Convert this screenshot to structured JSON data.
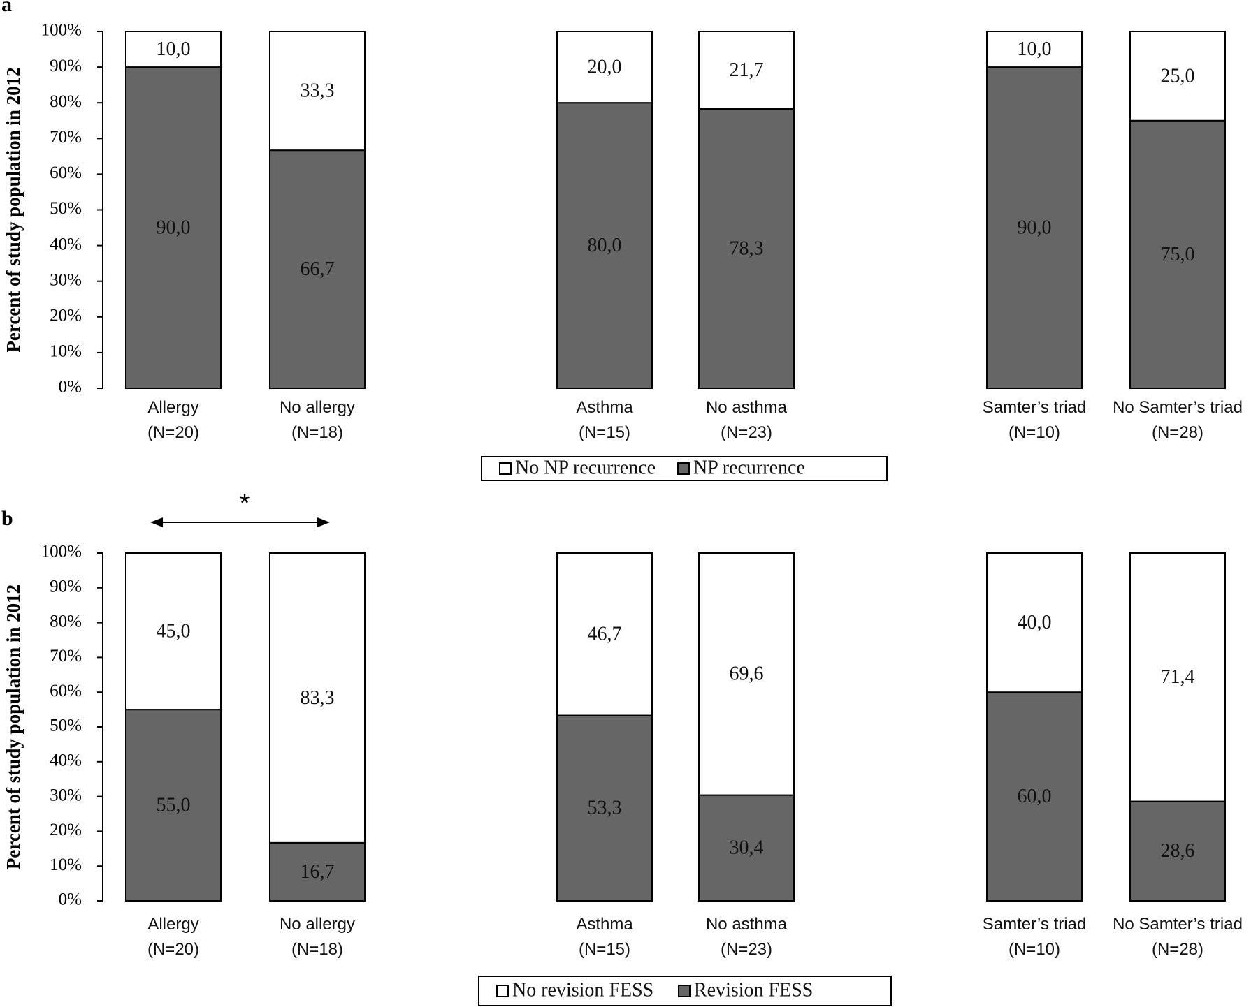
{
  "chart_data": [
    {
      "panel_label": "a",
      "type": "bar",
      "stacked": true,
      "ylabel": "Percent of study population in 2012",
      "ylim": [
        0,
        100
      ],
      "yticks": [
        "0%",
        "10%",
        "20%",
        "30%",
        "40%",
        "50%",
        "60%",
        "70%",
        "80%",
        "90%",
        "100%"
      ],
      "categories": [
        [
          "Allergy",
          "(N=20)"
        ],
        [
          "No allergy",
          "(N=18)"
        ],
        [
          "Asthma",
          "(N=15)"
        ],
        [
          "No asthma",
          "(N=23)"
        ],
        [
          "Samter’s triad",
          "(N=10)"
        ],
        [
          "No Samter’s triad",
          "(N=28)"
        ]
      ],
      "series": [
        {
          "name": "NP recurrence",
          "color": "#666666",
          "values": [
            90.0,
            66.7,
            80.0,
            78.3,
            90.0,
            75.0
          ],
          "labels": [
            "90,0",
            "66,7",
            "80,0",
            "78,3",
            "90,0",
            "75,0"
          ]
        },
        {
          "name": "No NP recurrence",
          "color": "#ffffff",
          "values": [
            10.0,
            33.3,
            20.0,
            21.7,
            10.0,
            25.0
          ],
          "labels": [
            "10,0",
            "33,3",
            "20,0",
            "21,7",
            "10,0",
            "25,0"
          ]
        }
      ],
      "legend": [
        "No NP recurrence",
        "NP recurrence"
      ],
      "grid": false
    },
    {
      "panel_label": "b",
      "type": "bar",
      "stacked": true,
      "ylabel": "Percent of study population in 2012",
      "ylim": [
        0,
        100
      ],
      "yticks": [
        "0%",
        "10%",
        "20%",
        "30%",
        "40%",
        "50%",
        "60%",
        "70%",
        "80%",
        "90%",
        "100%"
      ],
      "categories": [
        [
          "Allergy",
          "(N=20)"
        ],
        [
          "No allergy",
          "(N=18)"
        ],
        [
          "Asthma",
          "(N=15)"
        ],
        [
          "No asthma",
          "(N=23)"
        ],
        [
          "Samter’s triad",
          "(N=10)"
        ],
        [
          "No Samter’s triad",
          "(N=28)"
        ]
      ],
      "series": [
        {
          "name": "Revision FESS",
          "color": "#666666",
          "values": [
            55.0,
            16.7,
            53.3,
            30.4,
            60.0,
            28.6
          ],
          "labels": [
            "55,0",
            "16,7",
            "53,3",
            "30,4",
            "60,0",
            "28,6"
          ]
        },
        {
          "name": "No revision FESS",
          "color": "#ffffff",
          "values": [
            45.0,
            83.3,
            46.7,
            69.6,
            40.0,
            71.4
          ],
          "labels": [
            "45,0",
            "83,3",
            "46,7",
            "69,6",
            "40,0",
            "71,4"
          ]
        }
      ],
      "legend": [
        "No revision FESS",
        "Revision FESS"
      ],
      "significance": {
        "between": [
          "Allergy",
          "No allergy"
        ],
        "marker": "*"
      },
      "grid": false
    }
  ]
}
